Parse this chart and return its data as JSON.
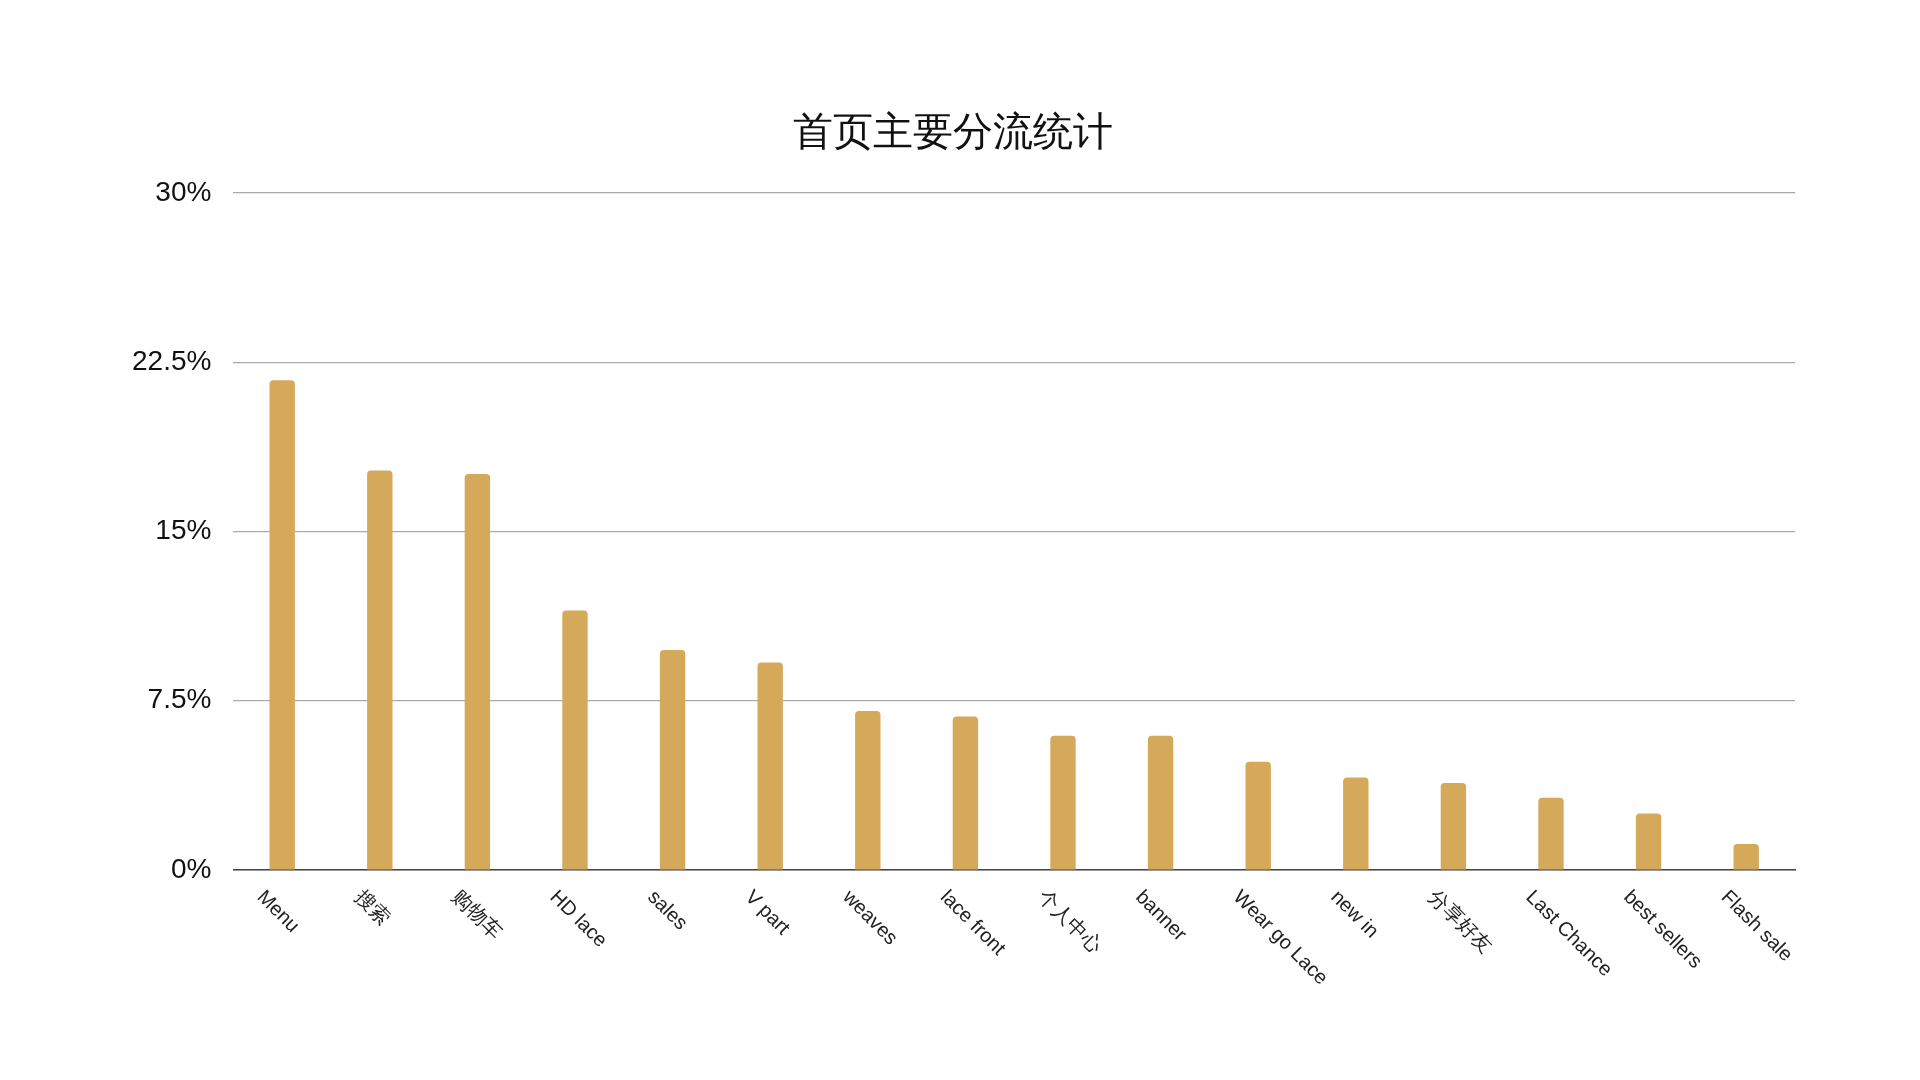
{
  "chart_data": {
    "type": "bar",
    "title": "首页主要分流统计",
    "categories": [
      "Menu",
      "搜索",
      "购物车",
      "HD lace",
      "sales",
      "V part",
      "weaves",
      "lace front",
      "个人中心",
      "banner",
      "Wear go Lace",
      "new in",
      "分享好友",
      "Last Chance",
      "best sellers",
      "Flash sale"
    ],
    "values": [
      21.7,
      17.7,
      17.55,
      11.5,
      9.75,
      9.2,
      7.05,
      6.8,
      5.95,
      5.95,
      4.8,
      4.1,
      3.85,
      3.2,
      2.5,
      1.15
    ],
    "color": "#d4a95a",
    "ylim": [
      0,
      30
    ],
    "yticks": [
      {
        "value": 0,
        "label": "0%"
      },
      {
        "value": 7.5,
        "label": "7.5%"
      },
      {
        "value": 15,
        "label": "15%"
      },
      {
        "value": 22.5,
        "label": "22.5%"
      },
      {
        "value": 30,
        "label": "30%"
      }
    ],
    "grid": "y",
    "legend": false
  }
}
